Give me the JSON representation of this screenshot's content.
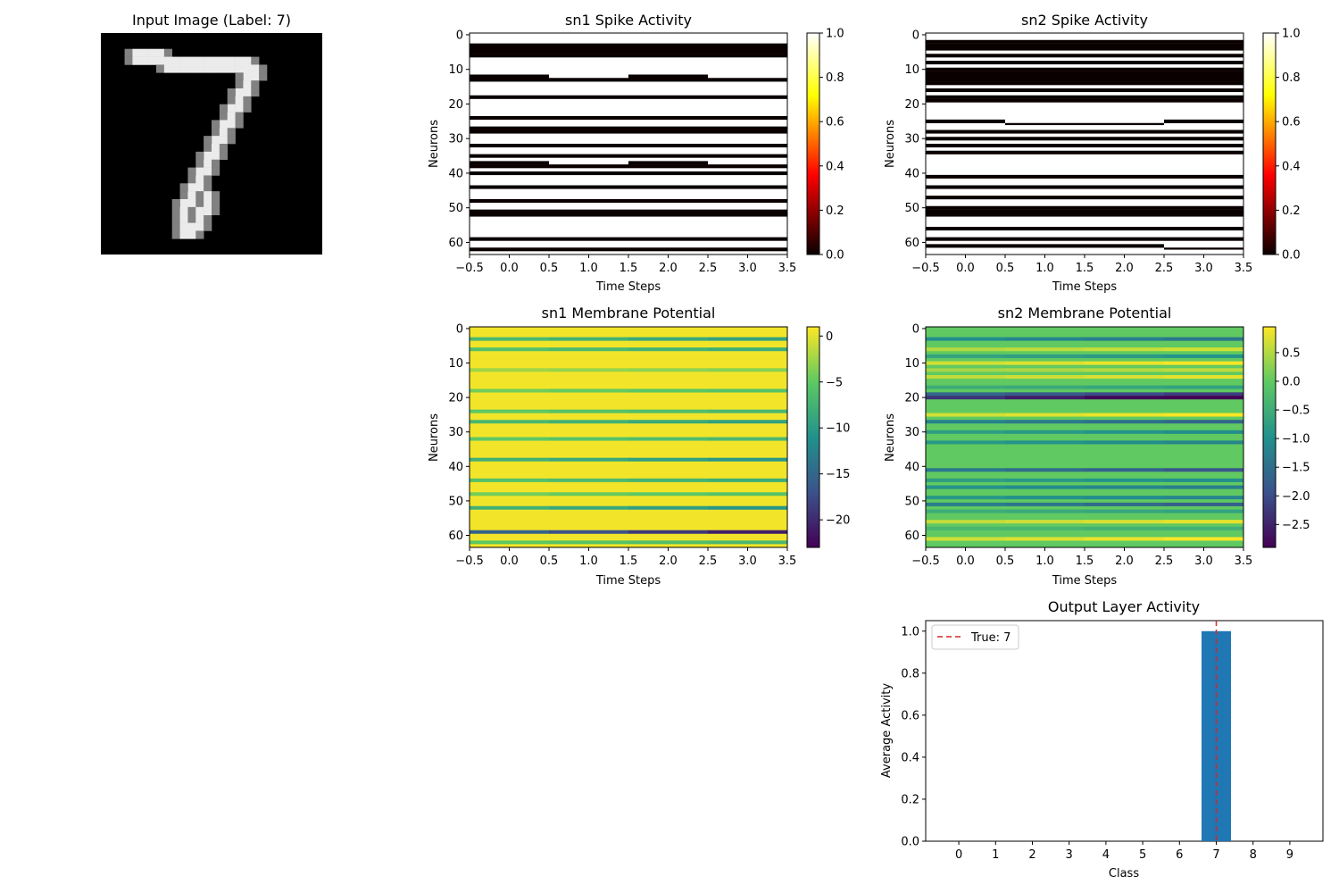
{
  "chart_data": [
    {
      "type": "image",
      "title": "Input Image (Label: 7)",
      "label": 7,
      "description_colormap": "gray",
      "image_size": [
        28,
        28
      ],
      "stroke_points": [
        [
          4,
          2
        ],
        [
          5,
          2
        ],
        [
          6,
          2
        ],
        [
          7,
          2
        ],
        [
          8,
          3
        ],
        [
          9,
          3
        ],
        [
          10,
          3
        ],
        [
          11,
          3
        ],
        [
          12,
          3
        ],
        [
          13,
          3
        ],
        [
          14,
          3
        ],
        [
          15,
          3
        ],
        [
          16,
          3
        ],
        [
          17,
          3
        ],
        [
          18,
          3
        ],
        [
          19,
          4
        ],
        [
          18,
          5
        ],
        [
          18,
          6
        ],
        [
          17,
          7
        ],
        [
          17,
          8
        ],
        [
          16,
          9
        ],
        [
          16,
          10
        ],
        [
          15,
          11
        ],
        [
          15,
          12
        ],
        [
          14,
          13
        ],
        [
          14,
          14
        ],
        [
          13,
          15
        ],
        [
          13,
          16
        ],
        [
          12,
          17
        ],
        [
          12,
          18
        ],
        [
          11,
          19
        ],
        [
          11,
          20
        ],
        [
          10,
          21
        ],
        [
          10,
          22
        ],
        [
          10,
          23
        ],
        [
          10,
          24
        ],
        [
          11,
          24
        ],
        [
          12,
          23
        ],
        [
          12,
          22
        ],
        [
          13,
          21
        ],
        [
          13,
          20
        ]
      ]
    },
    {
      "type": "heatmap",
      "title": "sn1 Spike Activity",
      "xlabel": "Time Steps",
      "ylabel": "Neurons",
      "colormap": "hot",
      "n_neurons": 64,
      "n_steps": 4,
      "xticks": [
        "−0.5",
        "0.0",
        "0.5",
        "1.0",
        "1.5",
        "2.0",
        "2.5",
        "3.0",
        "3.5"
      ],
      "yticks": [
        "0",
        "10",
        "20",
        "30",
        "40",
        "50",
        "60"
      ],
      "colorbar_ticks": [
        "0.0",
        "0.2",
        "0.4",
        "0.6",
        "0.8",
        "1.0"
      ],
      "colorbar_range": [
        0,
        1
      ],
      "spiking_rows": [
        [
          3,
          4,
          5,
          6
        ],
        [
          12,
          13
        ],
        [
          18
        ],
        [
          24
        ],
        [
          27,
          28
        ],
        [
          32
        ],
        [
          35
        ],
        [
          37,
          38
        ],
        [
          40
        ],
        [
          44
        ],
        [
          48
        ],
        [
          51,
          52
        ],
        [
          59
        ],
        [
          62
        ]
      ],
      "partial_rows": [
        {
          "row": 12,
          "steps": [
            0,
            2
          ]
        },
        {
          "row": 37,
          "steps": [
            0,
            2
          ]
        }
      ]
    },
    {
      "type": "heatmap",
      "title": "sn2 Spike Activity",
      "xlabel": "Time Steps",
      "ylabel": "Neurons",
      "colormap": "hot",
      "n_neurons": 64,
      "n_steps": 4,
      "xticks": [
        "−0.5",
        "0.0",
        "0.5",
        "1.0",
        "1.5",
        "2.0",
        "2.5",
        "3.0",
        "3.5"
      ],
      "yticks": [
        "0",
        "10",
        "20",
        "30",
        "40",
        "50",
        "60"
      ],
      "colorbar_ticks": [
        "0.0",
        "0.2",
        "0.4",
        "0.6",
        "0.8",
        "1.0"
      ],
      "colorbar_range": [
        0,
        1
      ],
      "spiking_rows": [
        [
          2,
          3,
          4
        ],
        [
          6
        ],
        [
          8
        ],
        [
          10,
          11,
          12,
          13,
          14
        ],
        [
          16
        ],
        [
          18,
          19
        ],
        [
          25
        ],
        [
          28
        ],
        [
          30
        ],
        [
          32
        ],
        [
          34
        ],
        [
          41
        ],
        [
          44
        ],
        [
          47
        ],
        [
          50,
          51,
          52
        ],
        [
          56
        ],
        [
          59
        ],
        [
          61
        ]
      ],
      "partial_rows": [
        {
          "row": 25,
          "steps": [
            0,
            3
          ]
        },
        {
          "row": 61,
          "steps": [
            0,
            1,
            2
          ]
        }
      ]
    },
    {
      "type": "heatmap",
      "title": "sn1 Membrane Potential",
      "xlabel": "Time Steps",
      "ylabel": "Neurons",
      "colormap": "viridis",
      "n_neurons": 64,
      "n_steps": 4,
      "xticks": [
        "−0.5",
        "0.0",
        "0.5",
        "1.0",
        "1.5",
        "2.0",
        "2.5",
        "3.0",
        "3.5"
      ],
      "yticks": [
        "0",
        "10",
        "20",
        "30",
        "40",
        "50",
        "60"
      ],
      "colorbar_ticks": [
        "0",
        "−5",
        "−10",
        "−15",
        "−20"
      ],
      "colorbar_range": [
        -23,
        1
      ],
      "low_rows": [
        {
          "row": 3,
          "value": -8
        },
        {
          "row": 6,
          "value": -7
        },
        {
          "row": 12,
          "value": -3
        },
        {
          "row": 18,
          "value": -5
        },
        {
          "row": 24,
          "value": -6
        },
        {
          "row": 27,
          "value": -8
        },
        {
          "row": 32,
          "value": -6
        },
        {
          "row": 38,
          "value": -9
        },
        {
          "row": 44,
          "value": -7
        },
        {
          "row": 48,
          "value": -5
        },
        {
          "row": 52,
          "value": -9
        },
        {
          "row": 59,
          "value": -18
        },
        {
          "row": 62,
          "value": -6
        }
      ]
    },
    {
      "type": "heatmap",
      "title": "sn2 Membrane Potential",
      "xlabel": "Time Steps",
      "ylabel": "Neurons",
      "colormap": "viridis",
      "n_neurons": 64,
      "n_steps": 4,
      "xticks": [
        "−0.5",
        "0.0",
        "0.5",
        "1.0",
        "1.5",
        "2.0",
        "2.5",
        "3.0",
        "3.5"
      ],
      "yticks": [
        "0",
        "10",
        "20",
        "30",
        "40",
        "50",
        "60"
      ],
      "colorbar_ticks": [
        "0.5",
        "0.0",
        "−0.5",
        "−1.0",
        "−1.5",
        "−2.0",
        "−2.5"
      ],
      "colorbar_range": [
        -2.9,
        0.95
      ],
      "special_rows": [
        {
          "row": 3,
          "value": -1.2
        },
        {
          "row": 6,
          "value": 0.6
        },
        {
          "row": 8,
          "value": -0.8
        },
        {
          "row": 10,
          "value": 0.8
        },
        {
          "row": 12,
          "value": 0.5
        },
        {
          "row": 14,
          "value": 0.7
        },
        {
          "row": 17,
          "value": -0.6
        },
        {
          "row": 19,
          "value": -1.9
        },
        {
          "row": 20,
          "value": -2.7
        },
        {
          "row": 25,
          "value": 0.8
        },
        {
          "row": 27,
          "value": -1.4
        },
        {
          "row": 30,
          "value": -0.9
        },
        {
          "row": 33,
          "value": -1.0
        },
        {
          "row": 41,
          "value": -1.6
        },
        {
          "row": 44,
          "value": -0.9
        },
        {
          "row": 46,
          "value": -1.1
        },
        {
          "row": 49,
          "value": -1.0
        },
        {
          "row": 51,
          "value": -1.5
        },
        {
          "row": 53,
          "value": -0.6
        },
        {
          "row": 56,
          "value": 0.7
        },
        {
          "row": 58,
          "value": -0.4
        },
        {
          "row": 61,
          "value": 0.8
        }
      ]
    },
    {
      "type": "bar",
      "title": "Output Layer Activity",
      "xlabel": "Class",
      "ylabel": "Average Activity",
      "categories": [
        "0",
        "1",
        "2",
        "3",
        "4",
        "5",
        "6",
        "7",
        "8",
        "9"
      ],
      "values": [
        0,
        0,
        0,
        0,
        0,
        0,
        0,
        1.0,
        0,
        0
      ],
      "ylim": [
        0,
        1.05
      ],
      "yticks": [
        "0.0",
        "0.2",
        "0.4",
        "0.6",
        "0.8",
        "1.0"
      ],
      "bar_color": "#1f77b4",
      "reference_line": {
        "x": 7,
        "color": "#d62728",
        "style": "dashed",
        "legend": "True: 7"
      },
      "legend_position": "upper-left"
    }
  ]
}
